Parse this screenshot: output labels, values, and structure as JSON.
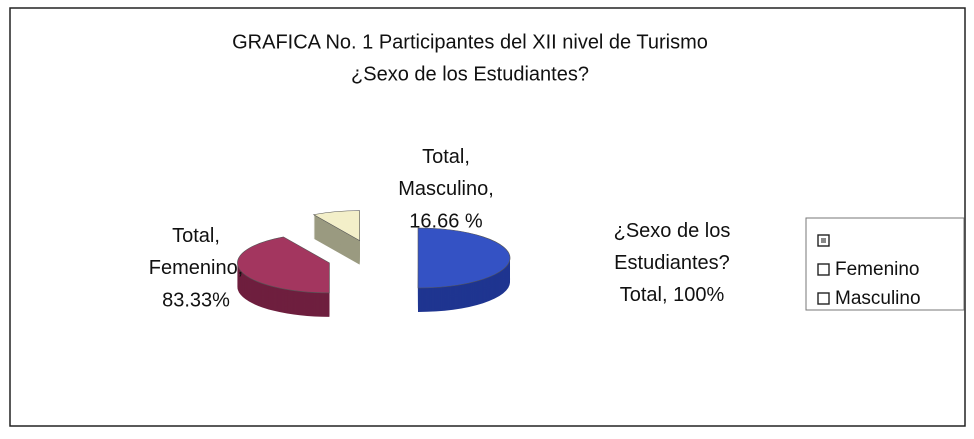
{
  "chart_data": {
    "type": "pie",
    "title": "GRAFICA No. 1 Participantes del XII nivel de Turismo",
    "subtitle": "¿Sexo de los Estudiantes?",
    "categories": [
      null,
      "Femenino",
      "Masculino"
    ],
    "slice_labels": [
      [
        "¿Sexo de los",
        "Estudiantes?",
        "Total,"
      ],
      [
        "Total,",
        "Femenino,"
      ],
      [
        "Total,",
        "Masculino,"
      ]
    ],
    "values": [
      100,
      83.33,
      16.66
    ],
    "value_labels": [
      "100%",
      "83.33%",
      "16.66 %"
    ],
    "colors": [
      "#3452c4",
      "#a3365f",
      "#f3efc9"
    ],
    "side_colors": [
      "#1f3590",
      "#6e1f3e",
      "#9a9a80"
    ],
    "legend": "right"
  }
}
